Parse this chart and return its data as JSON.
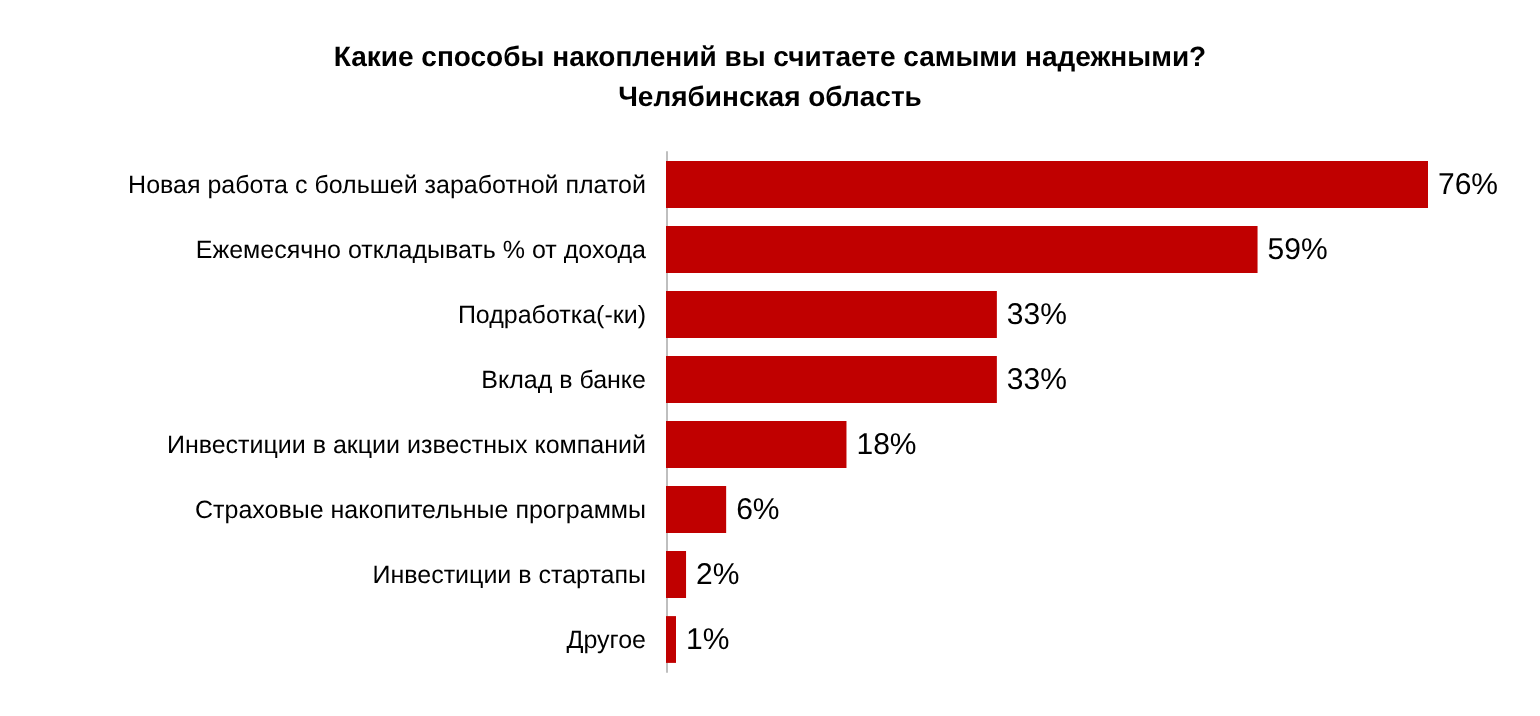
{
  "chart_data": {
    "type": "bar",
    "orientation": "horizontal",
    "title": "Какие способы накоплений вы считаете самыми надежными?",
    "subtitle": "Челябинская область",
    "categories": [
      "Новая работа с большей заработной платой",
      "Ежемесячно откладывать % от дохода",
      "Подработка(-ки)",
      "Вклад в банке",
      "Инвестиции в акции известных компаний",
      "Страховые накопительные программы",
      "Инвестиции в стартапы",
      "Другое"
    ],
    "values": [
      76,
      59,
      33,
      33,
      18,
      6,
      2,
      1
    ],
    "value_labels": [
      "76%",
      "59%",
      "33%",
      "33%",
      "18%",
      "6%",
      "2%",
      "1%"
    ],
    "color": "#c00000",
    "tick_labels": "y"
  }
}
